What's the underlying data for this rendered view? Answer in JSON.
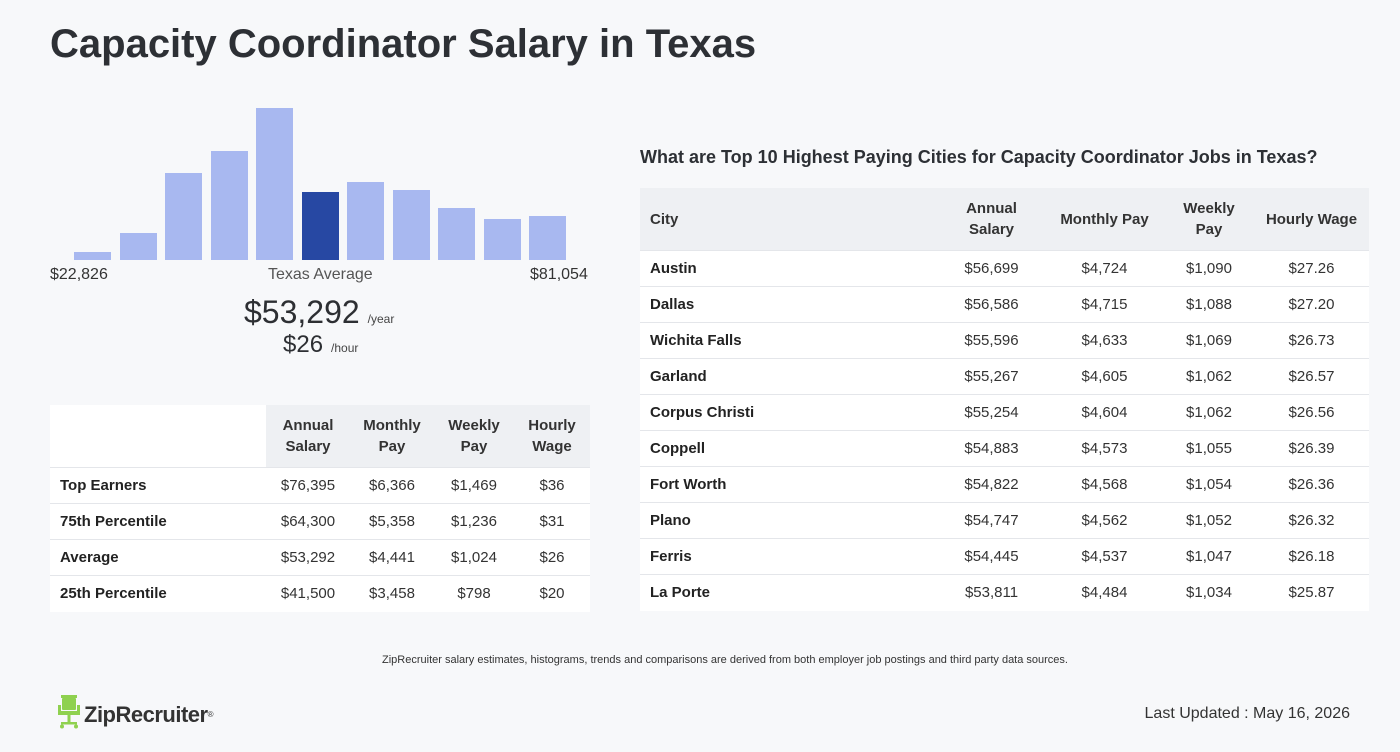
{
  "title": "Capacity Coordinator Salary in Texas",
  "histogram": {
    "min_label": "$22,826",
    "max_label": "$81,054",
    "center_label": "Texas Average",
    "average_year": "$53,292",
    "year_unit": "/year",
    "average_hour": "$26",
    "hour_unit": "/hour",
    "bar_relative_heights": [
      0.05,
      0.18,
      0.57,
      0.72,
      1.0,
      0.45,
      0.51,
      0.46,
      0.34,
      0.27,
      0.29
    ],
    "highlight_index": 5,
    "bar_color": "#a8b8f0",
    "highlight_color": "#2748a3"
  },
  "percentile_table": {
    "headers": [
      "",
      "Annual Salary",
      "Monthly Pay",
      "Weekly Pay",
      "Hourly Wage"
    ],
    "rows": [
      [
        "Top Earners",
        "$76,395",
        "$6,366",
        "$1,469",
        "$36"
      ],
      [
        "75th Percentile",
        "$64,300",
        "$5,358",
        "$1,236",
        "$31"
      ],
      [
        "Average",
        "$53,292",
        "$4,441",
        "$1,024",
        "$26"
      ],
      [
        "25th Percentile",
        "$41,500",
        "$3,458",
        "$798",
        "$20"
      ]
    ]
  },
  "cities": {
    "heading": "What are Top 10 Highest Paying Cities for Capacity Coordinator Jobs in Texas?",
    "headers": [
      "City",
      "Annual Salary",
      "Monthly Pay",
      "Weekly Pay",
      "Hourly Wage"
    ],
    "rows": [
      [
        "Austin",
        "$56,699",
        "$4,724",
        "$1,090",
        "$27.26"
      ],
      [
        "Dallas",
        "$56,586",
        "$4,715",
        "$1,088",
        "$27.20"
      ],
      [
        "Wichita Falls",
        "$55,596",
        "$4,633",
        "$1,069",
        "$26.73"
      ],
      [
        "Garland",
        "$55,267",
        "$4,605",
        "$1,062",
        "$26.57"
      ],
      [
        "Corpus Christi",
        "$55,254",
        "$4,604",
        "$1,062",
        "$26.56"
      ],
      [
        "Coppell",
        "$54,883",
        "$4,573",
        "$1,055",
        "$26.39"
      ],
      [
        "Fort Worth",
        "$54,822",
        "$4,568",
        "$1,054",
        "$26.36"
      ],
      [
        "Plano",
        "$54,747",
        "$4,562",
        "$1,052",
        "$26.32"
      ],
      [
        "Ferris",
        "$54,445",
        "$4,537",
        "$1,047",
        "$26.18"
      ],
      [
        "La Porte",
        "$53,811",
        "$4,484",
        "$1,034",
        "$25.87"
      ]
    ]
  },
  "footnote": "ZipRecruiter salary estimates, histograms, trends and comparisons are derived from both employer job postings and third party data sources.",
  "logo": {
    "text": "ZipRecruiter",
    "icon": "chair-icon",
    "icon_color": "#8fd14f"
  },
  "last_updated": "Last Updated : May 16, 2026"
}
